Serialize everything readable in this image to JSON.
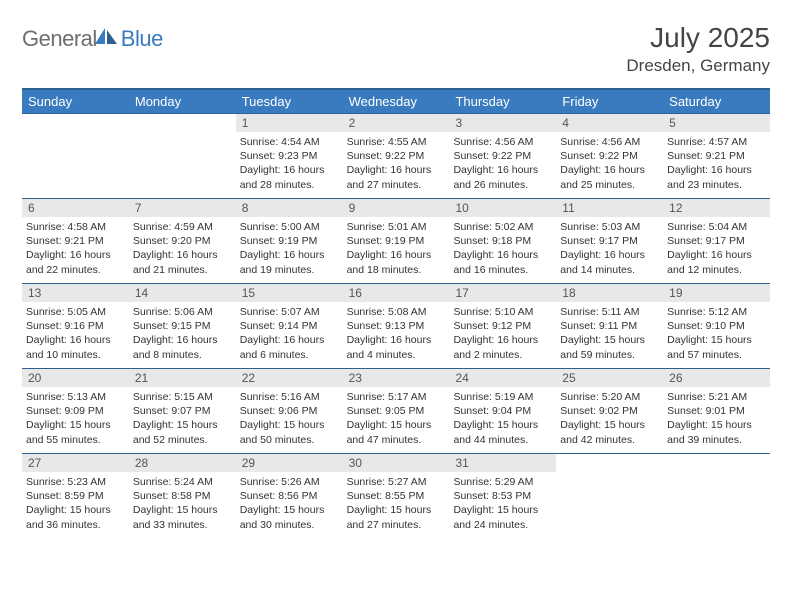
{
  "brand": {
    "text_a": "General",
    "text_b": "Blue"
  },
  "title": "July 2025",
  "subtitle": "Dresden, Germany",
  "colors": {
    "header_bg": "#3a7bbf",
    "border": "#2d5f8f",
    "daynum_bg": "#e8e8e8",
    "text": "#333333",
    "logo_gray": "#6e6e6e"
  },
  "weekday_labels": [
    "Sunday",
    "Monday",
    "Tuesday",
    "Wednesday",
    "Thursday",
    "Friday",
    "Saturday"
  ],
  "weeks": [
    [
      {
        "n": "",
        "sunrise": "",
        "sunset": "",
        "day": ""
      },
      {
        "n": "",
        "sunrise": "",
        "sunset": "",
        "day": ""
      },
      {
        "n": "1",
        "sunrise": "Sunrise: 4:54 AM",
        "sunset": "Sunset: 9:23 PM",
        "day": "Daylight: 16 hours and 28 minutes."
      },
      {
        "n": "2",
        "sunrise": "Sunrise: 4:55 AM",
        "sunset": "Sunset: 9:22 PM",
        "day": "Daylight: 16 hours and 27 minutes."
      },
      {
        "n": "3",
        "sunrise": "Sunrise: 4:56 AM",
        "sunset": "Sunset: 9:22 PM",
        "day": "Daylight: 16 hours and 26 minutes."
      },
      {
        "n": "4",
        "sunrise": "Sunrise: 4:56 AM",
        "sunset": "Sunset: 9:22 PM",
        "day": "Daylight: 16 hours and 25 minutes."
      },
      {
        "n": "5",
        "sunrise": "Sunrise: 4:57 AM",
        "sunset": "Sunset: 9:21 PM",
        "day": "Daylight: 16 hours and 23 minutes."
      }
    ],
    [
      {
        "n": "6",
        "sunrise": "Sunrise: 4:58 AM",
        "sunset": "Sunset: 9:21 PM",
        "day": "Daylight: 16 hours and 22 minutes."
      },
      {
        "n": "7",
        "sunrise": "Sunrise: 4:59 AM",
        "sunset": "Sunset: 9:20 PM",
        "day": "Daylight: 16 hours and 21 minutes."
      },
      {
        "n": "8",
        "sunrise": "Sunrise: 5:00 AM",
        "sunset": "Sunset: 9:19 PM",
        "day": "Daylight: 16 hours and 19 minutes."
      },
      {
        "n": "9",
        "sunrise": "Sunrise: 5:01 AM",
        "sunset": "Sunset: 9:19 PM",
        "day": "Daylight: 16 hours and 18 minutes."
      },
      {
        "n": "10",
        "sunrise": "Sunrise: 5:02 AM",
        "sunset": "Sunset: 9:18 PM",
        "day": "Daylight: 16 hours and 16 minutes."
      },
      {
        "n": "11",
        "sunrise": "Sunrise: 5:03 AM",
        "sunset": "Sunset: 9:17 PM",
        "day": "Daylight: 16 hours and 14 minutes."
      },
      {
        "n": "12",
        "sunrise": "Sunrise: 5:04 AM",
        "sunset": "Sunset: 9:17 PM",
        "day": "Daylight: 16 hours and 12 minutes."
      }
    ],
    [
      {
        "n": "13",
        "sunrise": "Sunrise: 5:05 AM",
        "sunset": "Sunset: 9:16 PM",
        "day": "Daylight: 16 hours and 10 minutes."
      },
      {
        "n": "14",
        "sunrise": "Sunrise: 5:06 AM",
        "sunset": "Sunset: 9:15 PM",
        "day": "Daylight: 16 hours and 8 minutes."
      },
      {
        "n": "15",
        "sunrise": "Sunrise: 5:07 AM",
        "sunset": "Sunset: 9:14 PM",
        "day": "Daylight: 16 hours and 6 minutes."
      },
      {
        "n": "16",
        "sunrise": "Sunrise: 5:08 AM",
        "sunset": "Sunset: 9:13 PM",
        "day": "Daylight: 16 hours and 4 minutes."
      },
      {
        "n": "17",
        "sunrise": "Sunrise: 5:10 AM",
        "sunset": "Sunset: 9:12 PM",
        "day": "Daylight: 16 hours and 2 minutes."
      },
      {
        "n": "18",
        "sunrise": "Sunrise: 5:11 AM",
        "sunset": "Sunset: 9:11 PM",
        "day": "Daylight: 15 hours and 59 minutes."
      },
      {
        "n": "19",
        "sunrise": "Sunrise: 5:12 AM",
        "sunset": "Sunset: 9:10 PM",
        "day": "Daylight: 15 hours and 57 minutes."
      }
    ],
    [
      {
        "n": "20",
        "sunrise": "Sunrise: 5:13 AM",
        "sunset": "Sunset: 9:09 PM",
        "day": "Daylight: 15 hours and 55 minutes."
      },
      {
        "n": "21",
        "sunrise": "Sunrise: 5:15 AM",
        "sunset": "Sunset: 9:07 PM",
        "day": "Daylight: 15 hours and 52 minutes."
      },
      {
        "n": "22",
        "sunrise": "Sunrise: 5:16 AM",
        "sunset": "Sunset: 9:06 PM",
        "day": "Daylight: 15 hours and 50 minutes."
      },
      {
        "n": "23",
        "sunrise": "Sunrise: 5:17 AM",
        "sunset": "Sunset: 9:05 PM",
        "day": "Daylight: 15 hours and 47 minutes."
      },
      {
        "n": "24",
        "sunrise": "Sunrise: 5:19 AM",
        "sunset": "Sunset: 9:04 PM",
        "day": "Daylight: 15 hours and 44 minutes."
      },
      {
        "n": "25",
        "sunrise": "Sunrise: 5:20 AM",
        "sunset": "Sunset: 9:02 PM",
        "day": "Daylight: 15 hours and 42 minutes."
      },
      {
        "n": "26",
        "sunrise": "Sunrise: 5:21 AM",
        "sunset": "Sunset: 9:01 PM",
        "day": "Daylight: 15 hours and 39 minutes."
      }
    ],
    [
      {
        "n": "27",
        "sunrise": "Sunrise: 5:23 AM",
        "sunset": "Sunset: 8:59 PM",
        "day": "Daylight: 15 hours and 36 minutes."
      },
      {
        "n": "28",
        "sunrise": "Sunrise: 5:24 AM",
        "sunset": "Sunset: 8:58 PM",
        "day": "Daylight: 15 hours and 33 minutes."
      },
      {
        "n": "29",
        "sunrise": "Sunrise: 5:26 AM",
        "sunset": "Sunset: 8:56 PM",
        "day": "Daylight: 15 hours and 30 minutes."
      },
      {
        "n": "30",
        "sunrise": "Sunrise: 5:27 AM",
        "sunset": "Sunset: 8:55 PM",
        "day": "Daylight: 15 hours and 27 minutes."
      },
      {
        "n": "31",
        "sunrise": "Sunrise: 5:29 AM",
        "sunset": "Sunset: 8:53 PM",
        "day": "Daylight: 15 hours and 24 minutes."
      },
      {
        "n": "",
        "sunrise": "",
        "sunset": "",
        "day": ""
      },
      {
        "n": "",
        "sunrise": "",
        "sunset": "",
        "day": ""
      }
    ]
  ]
}
